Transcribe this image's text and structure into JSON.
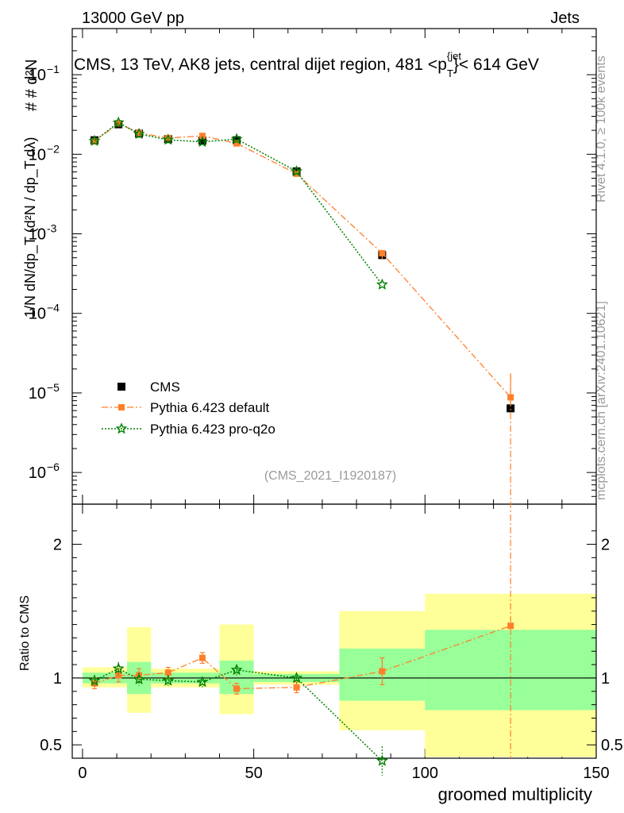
{
  "header": {
    "left": "13000 GeV pp",
    "right": "Jets",
    "side_right_top": "Rivet 4.1.0, ≥ 100k events",
    "side_right_bottom": "mcplots.cern.ch [arXiv:2401.10621]",
    "analysis_id": "(CMS_2021_I1920187)"
  },
  "chart_data": {
    "type": "scatter",
    "title": "CMS, 13 TeV, AK8 jets, central dijet region, 481 <p_T^{jet}< 614 GeV",
    "title_parts": {
      "pre": "CMS, 13 TeV, AK8 jets, central dijet region, 481 <p",
      "sup": "{jet",
      "sub": "T",
      "post": "}< 614 GeV"
    },
    "xlabel": "groomed multiplicity",
    "ylabel_main": "1/N dN/dp_T  (d²N / dp_T dλ)",
    "ylabel_ratio": "Ratio to CMS",
    "xlim": [
      -3,
      150
    ],
    "ylim_main": [
      4e-07,
      0.38
    ],
    "ylim_ratio": [
      0.4,
      2.3
    ],
    "log_y_main": true,
    "legend_position": "lower-left",
    "x_ticks": [
      0,
      50,
      100,
      150
    ],
    "x_tick_labels": [
      "0",
      "50",
      "100",
      "150"
    ],
    "main_y_ticks": [
      {
        "v": 0.1,
        "m": "10",
        "e": "−1"
      },
      {
        "v": 0.01,
        "m": "10",
        "e": "−2"
      },
      {
        "v": 0.001,
        "m": "10",
        "e": "-3"
      },
      {
        "v": 0.0001,
        "m": "10",
        "e": "−4"
      },
      {
        "v": 1e-05,
        "m": "10",
        "e": "−5"
      },
      {
        "v": 1e-06,
        "m": "10",
        "e": "−6"
      }
    ],
    "ratio_y_ticks": [
      {
        "v": 0.5,
        "label": "0.5"
      },
      {
        "v": 1,
        "label": "1"
      },
      {
        "v": 2,
        "label": "2"
      }
    ],
    "bins": [
      {
        "lo": 0,
        "hi": 7,
        "x": 3.5
      },
      {
        "lo": 7,
        "hi": 13,
        "x": 10.5
      },
      {
        "lo": 13,
        "hi": 20,
        "x": 16.5
      },
      {
        "lo": 20,
        "hi": 30,
        "x": 25
      },
      {
        "lo": 30,
        "hi": 40,
        "x": 35
      },
      {
        "lo": 40,
        "hi": 50,
        "x": 45
      },
      {
        "lo": 50,
        "hi": 75,
        "x": 62.5
      },
      {
        "lo": 75,
        "hi": 100,
        "x": 87.5
      },
      {
        "lo": 100,
        "hi": 150,
        "x": 125
      }
    ],
    "series": [
      {
        "name": "CMS",
        "marker": "square",
        "color": "#000000",
        "values": [
          0.015,
          0.0238,
          0.0182,
          0.0155,
          0.0148,
          0.015,
          0.0061,
          0.00054,
          6.4e-06
        ],
        "band_stat": [
          [
            0.96,
            1.04
          ],
          [
            0.96,
            1.04
          ],
          [
            0.88,
            1.12
          ],
          [
            0.96,
            1.04
          ],
          [
            0.96,
            1.04
          ],
          [
            0.88,
            1.13
          ],
          [
            0.97,
            1.03
          ],
          [
            0.83,
            1.22
          ],
          [
            0.76,
            1.36
          ]
        ],
        "band_total": [
          [
            0.93,
            1.08
          ],
          [
            0.93,
            1.08
          ],
          [
            0.74,
            1.38
          ],
          [
            0.93,
            1.07
          ],
          [
            0.93,
            1.07
          ],
          [
            0.73,
            1.4
          ],
          [
            0.95,
            1.05
          ],
          [
            0.61,
            1.5
          ],
          [
            0.41,
            1.63
          ]
        ]
      },
      {
        "name": "Pythia 6.423 default",
        "marker": "filled-square",
        "color": "#ff7f2a",
        "line": "dash-dot",
        "values": [
          0.0145,
          0.0245,
          0.0185,
          0.016,
          0.017,
          0.0137,
          0.0057,
          0.00057,
          8.8e-06
        ],
        "ratio": [
          0.96,
          1.02,
          1.02,
          1.04,
          1.15,
          0.92,
          0.93,
          1.05,
          1.39
        ],
        "ratio_err": [
          0.04,
          0.05,
          0.05,
          0.04,
          0.04,
          0.04,
          0.04,
          0.1,
          1.0
        ]
      },
      {
        "name": "Pythia 6.423 pro-q2o",
        "marker": "star",
        "color": "#008000",
        "line": "dotted",
        "values": [
          0.0147,
          0.025,
          0.018,
          0.0152,
          0.0143,
          0.0155,
          0.0061,
          0.00023,
          null
        ],
        "ratio": [
          0.98,
          1.07,
          0.99,
          0.98,
          0.97,
          1.06,
          1.0,
          0.38,
          null
        ],
        "ratio_err": [
          0.04,
          0.05,
          0.05,
          0.04,
          0.04,
          0.04,
          0.04,
          0.11,
          null
        ]
      }
    ]
  }
}
